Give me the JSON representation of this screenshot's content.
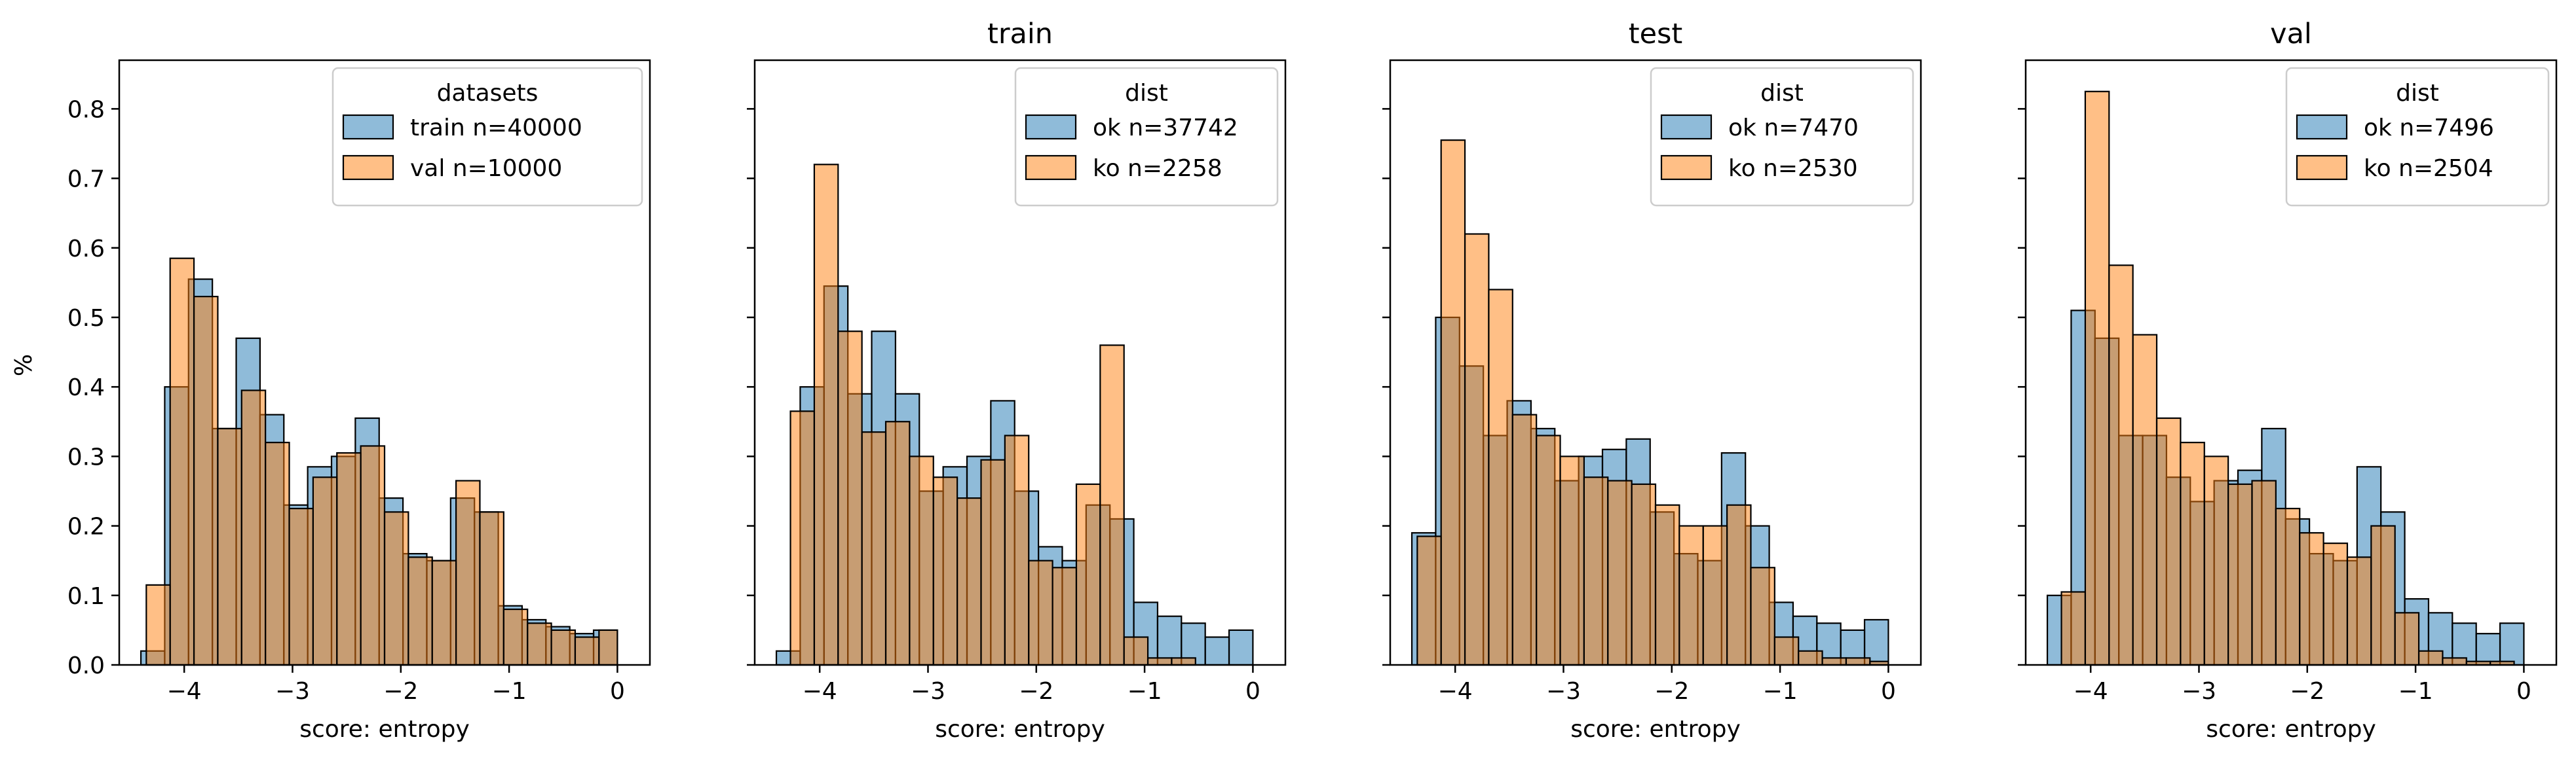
{
  "figure": {
    "ylabel_shared": "%",
    "xlabel_shared": "score: entropy"
  },
  "colors": {
    "blue": "#1f77b4",
    "orange": "#ff7f0e",
    "edge": "#000000"
  },
  "chart_data": [
    {
      "type": "bar",
      "title": "",
      "xlabel": "score: entropy",
      "ylabel": "%",
      "xlim": [
        -4.6,
        0.3
      ],
      "ylim": [
        0,
        0.87
      ],
      "xticks": [
        -4,
        -3,
        -2,
        -1,
        0
      ],
      "xtick_labels": [
        "−4",
        "−3",
        "−2",
        "−1",
        "0"
      ],
      "yticks": [
        0.0,
        0.1,
        0.2,
        0.3,
        0.4,
        0.5,
        0.6,
        0.7,
        0.8
      ],
      "ytick_labels": [
        "0.0",
        "0.1",
        "0.2",
        "0.3",
        "0.4",
        "0.5",
        "0.6",
        "0.7",
        "0.8"
      ],
      "legend": {
        "title": "datasets",
        "placement": "top-right"
      },
      "series": [
        {
          "name": "train n=40000",
          "color": "#1f77b4",
          "edges": [
            -4.4,
            -4.18,
            -3.96,
            -3.74,
            -3.52,
            -3.3,
            -3.08,
            -2.86,
            -2.64,
            -2.42,
            -2.2,
            -1.98,
            -1.76,
            -1.54,
            -1.32,
            -1.1,
            -0.88,
            -0.66,
            -0.44,
            -0.22,
            0.0
          ],
          "values": [
            0.02,
            0.4,
            0.555,
            0.34,
            0.47,
            0.36,
            0.23,
            0.285,
            0.3,
            0.355,
            0.24,
            0.16,
            0.15,
            0.24,
            0.22,
            0.085,
            0.065,
            0.055,
            0.045,
            0.05
          ]
        },
        {
          "name": "val n=10000",
          "color": "#ff7f0e",
          "edges": [
            -4.35,
            -4.13,
            -3.91,
            -3.69,
            -3.47,
            -3.25,
            -3.03,
            -2.81,
            -2.59,
            -2.37,
            -2.15,
            -1.93,
            -1.71,
            -1.49,
            -1.27,
            -1.05,
            -0.83,
            -0.61,
            -0.39,
            -0.17,
            0.0
          ],
          "values": [
            0.115,
            0.585,
            0.53,
            0.34,
            0.395,
            0.32,
            0.225,
            0.27,
            0.305,
            0.315,
            0.22,
            0.155,
            0.15,
            0.265,
            0.22,
            0.08,
            0.06,
            0.05,
            0.04,
            0.05
          ]
        }
      ]
    },
    {
      "type": "bar",
      "title": "train",
      "xlabel": "score: entropy",
      "ylabel": "",
      "xlim": [
        -4.6,
        0.3
      ],
      "ylim": [
        0,
        0.87
      ],
      "xticks": [
        -4,
        -3,
        -2,
        -1,
        0
      ],
      "xtick_labels": [
        "−4",
        "−3",
        "−2",
        "−1",
        "0"
      ],
      "yticks": [
        0.0,
        0.1,
        0.2,
        0.3,
        0.4,
        0.5,
        0.6,
        0.7,
        0.8
      ],
      "ytick_labels": [],
      "legend": {
        "title": "dist",
        "placement": "top-right"
      },
      "series": [
        {
          "name": "ok n=37742",
          "color": "#1f77b4",
          "edges": [
            -4.4,
            -4.18,
            -3.96,
            -3.74,
            -3.52,
            -3.3,
            -3.08,
            -2.86,
            -2.64,
            -2.42,
            -2.2,
            -1.98,
            -1.76,
            -1.54,
            -1.32,
            -1.1,
            -0.88,
            -0.66,
            -0.44,
            -0.22,
            0.0
          ],
          "values": [
            0.02,
            0.4,
            0.545,
            0.39,
            0.48,
            0.39,
            0.25,
            0.285,
            0.3,
            0.38,
            0.25,
            0.17,
            0.15,
            0.23,
            0.21,
            0.09,
            0.07,
            0.06,
            0.04,
            0.05
          ]
        },
        {
          "name": "ko n=2258",
          "color": "#ff7f0e",
          "edges": [
            -4.27,
            -4.05,
            -3.83,
            -3.61,
            -3.39,
            -3.17,
            -2.95,
            -2.73,
            -2.51,
            -2.29,
            -2.07,
            -1.85,
            -1.63,
            -1.41,
            -1.19,
            -0.97,
            -0.75,
            -0.53
          ],
          "values": [
            0.365,
            0.72,
            0.48,
            0.335,
            0.35,
            0.3,
            0.27,
            0.24,
            0.295,
            0.33,
            0.15,
            0.14,
            0.26,
            0.46,
            0.04,
            0.01,
            0.01
          ]
        }
      ]
    },
    {
      "type": "bar",
      "title": "test",
      "xlabel": "score: entropy",
      "ylabel": "",
      "xlim": [
        -4.6,
        0.3
      ],
      "ylim": [
        0,
        0.87
      ],
      "xticks": [
        -4,
        -3,
        -2,
        -1,
        0
      ],
      "xtick_labels": [
        "−4",
        "−3",
        "−2",
        "−1",
        "0"
      ],
      "yticks": [
        0.0,
        0.1,
        0.2,
        0.3,
        0.4,
        0.5,
        0.6,
        0.7,
        0.8
      ],
      "ytick_labels": [],
      "legend": {
        "title": "dist",
        "placement": "top-right"
      },
      "series": [
        {
          "name": "ok n=7470",
          "color": "#1f77b4",
          "edges": [
            -4.4,
            -4.18,
            -3.96,
            -3.74,
            -3.52,
            -3.3,
            -3.08,
            -2.86,
            -2.64,
            -2.42,
            -2.2,
            -1.98,
            -1.76,
            -1.54,
            -1.32,
            -1.1,
            -0.88,
            -0.66,
            -0.44,
            -0.22,
            0.0
          ],
          "values": [
            0.19,
            0.5,
            0.43,
            0.33,
            0.38,
            0.34,
            0.265,
            0.3,
            0.31,
            0.325,
            0.22,
            0.16,
            0.15,
            0.305,
            0.2,
            0.09,
            0.07,
            0.06,
            0.05,
            0.065
          ]
        },
        {
          "name": "ko n=2530",
          "color": "#ff7f0e",
          "edges": [
            -4.35,
            -4.13,
            -3.91,
            -3.69,
            -3.47,
            -3.25,
            -3.03,
            -2.81,
            -2.59,
            -2.37,
            -2.15,
            -1.93,
            -1.71,
            -1.49,
            -1.27,
            -1.05,
            -0.83,
            -0.61,
            -0.39,
            -0.17,
            0.0
          ],
          "values": [
            0.185,
            0.755,
            0.62,
            0.54,
            0.36,
            0.33,
            0.3,
            0.27,
            0.265,
            0.26,
            0.23,
            0.2,
            0.2,
            0.23,
            0.14,
            0.04,
            0.02,
            0.01,
            0.01,
            0.005
          ]
        }
      ]
    },
    {
      "type": "bar",
      "title": "val",
      "xlabel": "score: entropy",
      "ylabel": "",
      "xlim": [
        -4.6,
        0.3
      ],
      "ylim": [
        0,
        0.87
      ],
      "xticks": [
        -4,
        -3,
        -2,
        -1,
        0
      ],
      "xtick_labels": [
        "−4",
        "−3",
        "−2",
        "−1",
        "0"
      ],
      "yticks": [
        0.0,
        0.1,
        0.2,
        0.3,
        0.4,
        0.5,
        0.6,
        0.7,
        0.8
      ],
      "ytick_labels": [],
      "legend": {
        "title": "dist",
        "placement": "top-right"
      },
      "series": [
        {
          "name": "ok n=7496",
          "color": "#1f77b4",
          "edges": [
            -4.4,
            -4.18,
            -3.96,
            -3.74,
            -3.52,
            -3.3,
            -3.08,
            -2.86,
            -2.64,
            -2.42,
            -2.2,
            -1.98,
            -1.76,
            -1.54,
            -1.32,
            -1.1,
            -0.88,
            -0.66,
            -0.44,
            -0.22,
            0.0
          ],
          "values": [
            0.1,
            0.51,
            0.47,
            0.33,
            0.33,
            0.27,
            0.235,
            0.265,
            0.28,
            0.34,
            0.21,
            0.16,
            0.15,
            0.285,
            0.22,
            0.095,
            0.075,
            0.06,
            0.045,
            0.06
          ]
        },
        {
          "name": "ko n=2504",
          "color": "#ff7f0e",
          "edges": [
            -4.27,
            -4.05,
            -3.83,
            -3.61,
            -3.39,
            -3.17,
            -2.95,
            -2.73,
            -2.51,
            -2.29,
            -2.07,
            -1.85,
            -1.63,
            -1.41,
            -1.19,
            -0.97,
            -0.75,
            -0.53,
            -0.31,
            -0.09
          ],
          "values": [
            0.105,
            0.825,
            0.575,
            0.475,
            0.355,
            0.32,
            0.3,
            0.26,
            0.265,
            0.225,
            0.19,
            0.175,
            0.155,
            0.2,
            0.075,
            0.02,
            0.01,
            0.005,
            0.005
          ]
        }
      ]
    }
  ]
}
